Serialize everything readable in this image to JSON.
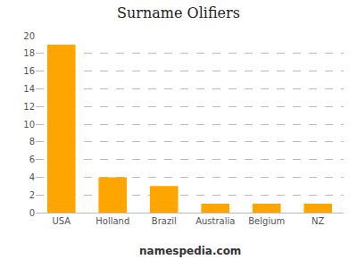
{
  "chart_data": {
    "type": "bar",
    "title": "Surname Olifiers",
    "categories": [
      "USA",
      "Holland",
      "Brazil",
      "Australia",
      "Belgium",
      "NZ"
    ],
    "values": [
      19,
      4,
      3,
      1,
      1,
      1
    ],
    "color": "#FFA500",
    "ylim": [
      0,
      20
    ],
    "yticks": [
      0,
      2,
      4,
      6,
      8,
      10,
      12,
      14,
      16,
      18,
      20
    ],
    "grid": true,
    "annotations": [
      "namespedia.com"
    ]
  }
}
